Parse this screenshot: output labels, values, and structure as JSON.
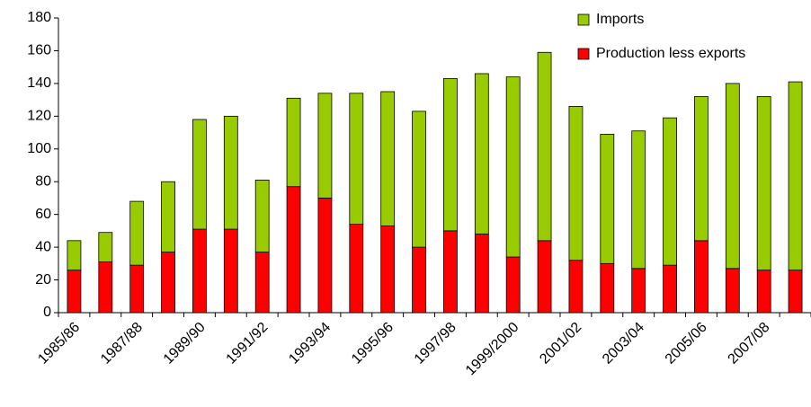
{
  "chart_data": {
    "type": "stacked_bar",
    "categories": [
      "1985/86",
      null,
      "1987/88",
      null,
      "1989/90",
      null,
      "1991/92",
      null,
      "1993/94",
      null,
      "1995/96",
      null,
      "1997/98",
      null,
      "1999/2000",
      null,
      "2001/02",
      null,
      "2003/04",
      null,
      "2005/06",
      null,
      "2007/08",
      null
    ],
    "series": [
      {
        "name": "Production less exports",
        "color": "#ff0000",
        "values": [
          26,
          31,
          29,
          37,
          51,
          51,
          37,
          77,
          70,
          54,
          53,
          40,
          50,
          48,
          34,
          44,
          32,
          30,
          27,
          29,
          44,
          27,
          26,
          26
        ]
      },
      {
        "name": "Imports",
        "color": "#99cc00",
        "values": [
          18,
          18,
          39,
          43,
          67,
          69,
          44,
          54,
          64,
          80,
          82,
          83,
          93,
          98,
          110,
          115,
          94,
          79,
          84,
          90,
          88,
          113,
          106,
          115
        ]
      }
    ],
    "ylim": [
      0,
      180
    ],
    "yticks": [
      0,
      20,
      40,
      60,
      80,
      100,
      120,
      140,
      160,
      180
    ],
    "grid": false,
    "legend": "top-right"
  }
}
